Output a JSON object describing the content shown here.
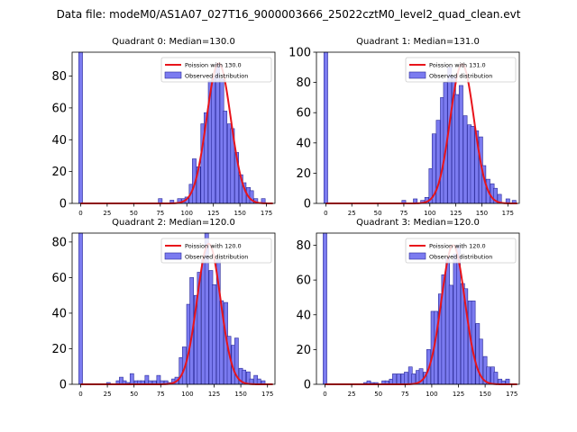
{
  "figure_title": "Data file: modeM0/AS1A07_027T16_9000003666_25022cztM0_level2_quad_clean.evt",
  "colors": {
    "bar_fill": "#7b7bf0",
    "bar_edge": "#2a2a9a",
    "curve": "#e8141b",
    "axis": "#000000"
  },
  "chart_data": [
    {
      "type": "bar",
      "title": "Quadrant 0: Median=130.0",
      "xlabel": "",
      "ylabel": "",
      "xlim": [
        -8,
        183
      ],
      "ylim": [
        0,
        95
      ],
      "xticks": [
        0,
        25,
        50,
        75,
        100,
        125,
        150,
        175
      ],
      "yticks": [
        0,
        20,
        40,
        60,
        80
      ],
      "bin_width": 3.6,
      "legend": [
        "Poission with 130.0",
        "Observed distribution"
      ],
      "legend_loc": "upper right",
      "curve_mean": 130.0,
      "curve_peak": 88,
      "bars": {
        "x": [
          0,
          75,
          86,
          93,
          97,
          100,
          104,
          107,
          111,
          115,
          118,
          122,
          125,
          129,
          133,
          136,
          140,
          143,
          147,
          151,
          154,
          158,
          161,
          165,
          172
        ],
        "values": [
          95,
          3,
          2,
          3,
          3,
          4,
          12,
          28,
          23,
          50,
          57,
          77,
          80,
          88,
          78,
          58,
          50,
          47,
          32,
          18,
          13,
          10,
          8,
          3,
          3
        ]
      }
    },
    {
      "type": "bar",
      "title": "Quadrant 1: Median=131.0",
      "xlabel": "",
      "ylabel": "",
      "xlim": [
        -9,
        186
      ],
      "ylim": [
        0,
        100
      ],
      "xticks": [
        0,
        25,
        50,
        75,
        100,
        125,
        150,
        175
      ],
      "yticks": [
        0,
        20,
        40,
        60,
        80,
        100
      ],
      "bin_width": 3.7,
      "legend": [
        "Poission with 131.0",
        "Observed distribution"
      ],
      "legend_loc": "upper right",
      "curve_mean": 131.0,
      "curve_peak": 92,
      "bars": {
        "x": [
          0,
          75,
          86,
          93,
          97,
          101,
          104,
          108,
          112,
          115,
          119,
          123,
          126,
          130,
          134,
          138,
          141,
          145,
          149,
          152,
          156,
          160,
          163,
          167,
          175,
          181
        ],
        "values": [
          100,
          2,
          3,
          2,
          4,
          23,
          46,
          55,
          70,
          80,
          90,
          84,
          72,
          78,
          58,
          52,
          51,
          48,
          44,
          25,
          16,
          13,
          10,
          6,
          3,
          2
        ]
      }
    },
    {
      "type": "bar",
      "title": "Quadrant 2: Median=120.0",
      "xlabel": "",
      "ylabel": "",
      "xlim": [
        -8,
        182
      ],
      "ylim": [
        0,
        85
      ],
      "xticks": [
        0,
        25,
        50,
        75,
        100,
        125,
        150,
        175
      ],
      "yticks": [
        0,
        20,
        40,
        60,
        80
      ],
      "bin_width": 3.5,
      "legend": [
        "Poission with 120.0",
        "Observed distribution"
      ],
      "legend_loc": "upper right",
      "curve_mean": 120.0,
      "curve_peak": 79,
      "bars": {
        "x": [
          0,
          26,
          35,
          38,
          41,
          44,
          48,
          52,
          55,
          58,
          62,
          65,
          69,
          73,
          76,
          80,
          83,
          87,
          90,
          94,
          97,
          101,
          104,
          108,
          111,
          115,
          118,
          122,
          125,
          129,
          132,
          136,
          139,
          143,
          146,
          150,
          153,
          157,
          160,
          164,
          167,
          171
        ],
        "values": [
          85,
          1,
          2,
          4,
          2,
          1,
          6,
          2,
          2,
          2,
          5,
          2,
          2,
          5,
          2,
          2,
          1,
          3,
          4,
          15,
          21,
          45,
          60,
          50,
          63,
          70,
          85,
          64,
          56,
          70,
          47,
          46,
          27,
          22,
          26,
          9,
          8,
          7,
          3,
          5,
          3,
          2
        ]
      }
    },
    {
      "type": "bar",
      "title": "Quadrant 3: Median=120.0",
      "xlabel": "",
      "ylabel": "",
      "xlim": [
        -8,
        182
      ],
      "ylim": [
        0,
        87
      ],
      "xticks": [
        0,
        25,
        50,
        75,
        100,
        125,
        150,
        175
      ],
      "yticks": [
        0,
        20,
        40,
        60,
        80
      ],
      "bin_width": 3.5,
      "legend": [
        "Poission with 120.0",
        "Observed distribution"
      ],
      "legend_loc": "upper right",
      "curve_mean": 120.0,
      "curve_peak": 80,
      "bars": {
        "x": [
          0,
          38,
          41,
          44,
          48,
          55,
          58,
          62,
          65,
          69,
          73,
          76,
          80,
          83,
          87,
          90,
          94,
          97,
          101,
          104,
          108,
          111,
          115,
          118,
          122,
          125,
          129,
          132,
          136,
          139,
          143,
          146,
          150,
          153,
          157,
          160,
          164,
          167,
          171
        ],
        "values": [
          87,
          1,
          2,
          1,
          1,
          2,
          2,
          3,
          6,
          6,
          6,
          7,
          10,
          6,
          8,
          9,
          7,
          20,
          42,
          42,
          52,
          63,
          73,
          57,
          75,
          80,
          58,
          55,
          48,
          48,
          35,
          26,
          16,
          10,
          10,
          7,
          3,
          2,
          3
        ]
      }
    }
  ]
}
